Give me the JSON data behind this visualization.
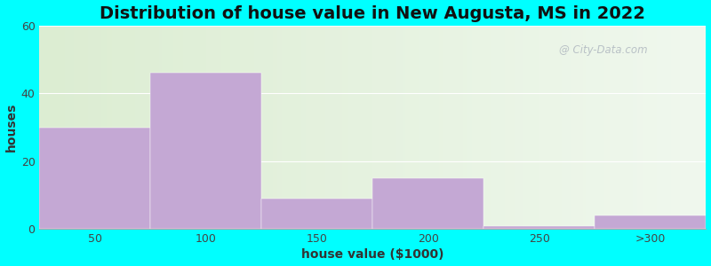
{
  "title": "Distribution of house value in New Augusta, MS in 2022",
  "xlabel": "house value ($1000)",
  "ylabel": "houses",
  "categories": [
    "50",
    "100",
    "150",
    "200",
    "250",
    ">300"
  ],
  "values": [
    30,
    46,
    9,
    15,
    1,
    4
  ],
  "bar_color": "#c4a8d4",
  "bar_edgecolor": "#c4a8d4",
  "ylim": [
    0,
    60
  ],
  "yticks": [
    0,
    20,
    40,
    60
  ],
  "outer_bg": "#00ffff",
  "grid_color": "#cccccc",
  "title_fontsize": 14,
  "axis_label_fontsize": 10,
  "tick_fontsize": 9,
  "watermark": "City-Data.com"
}
